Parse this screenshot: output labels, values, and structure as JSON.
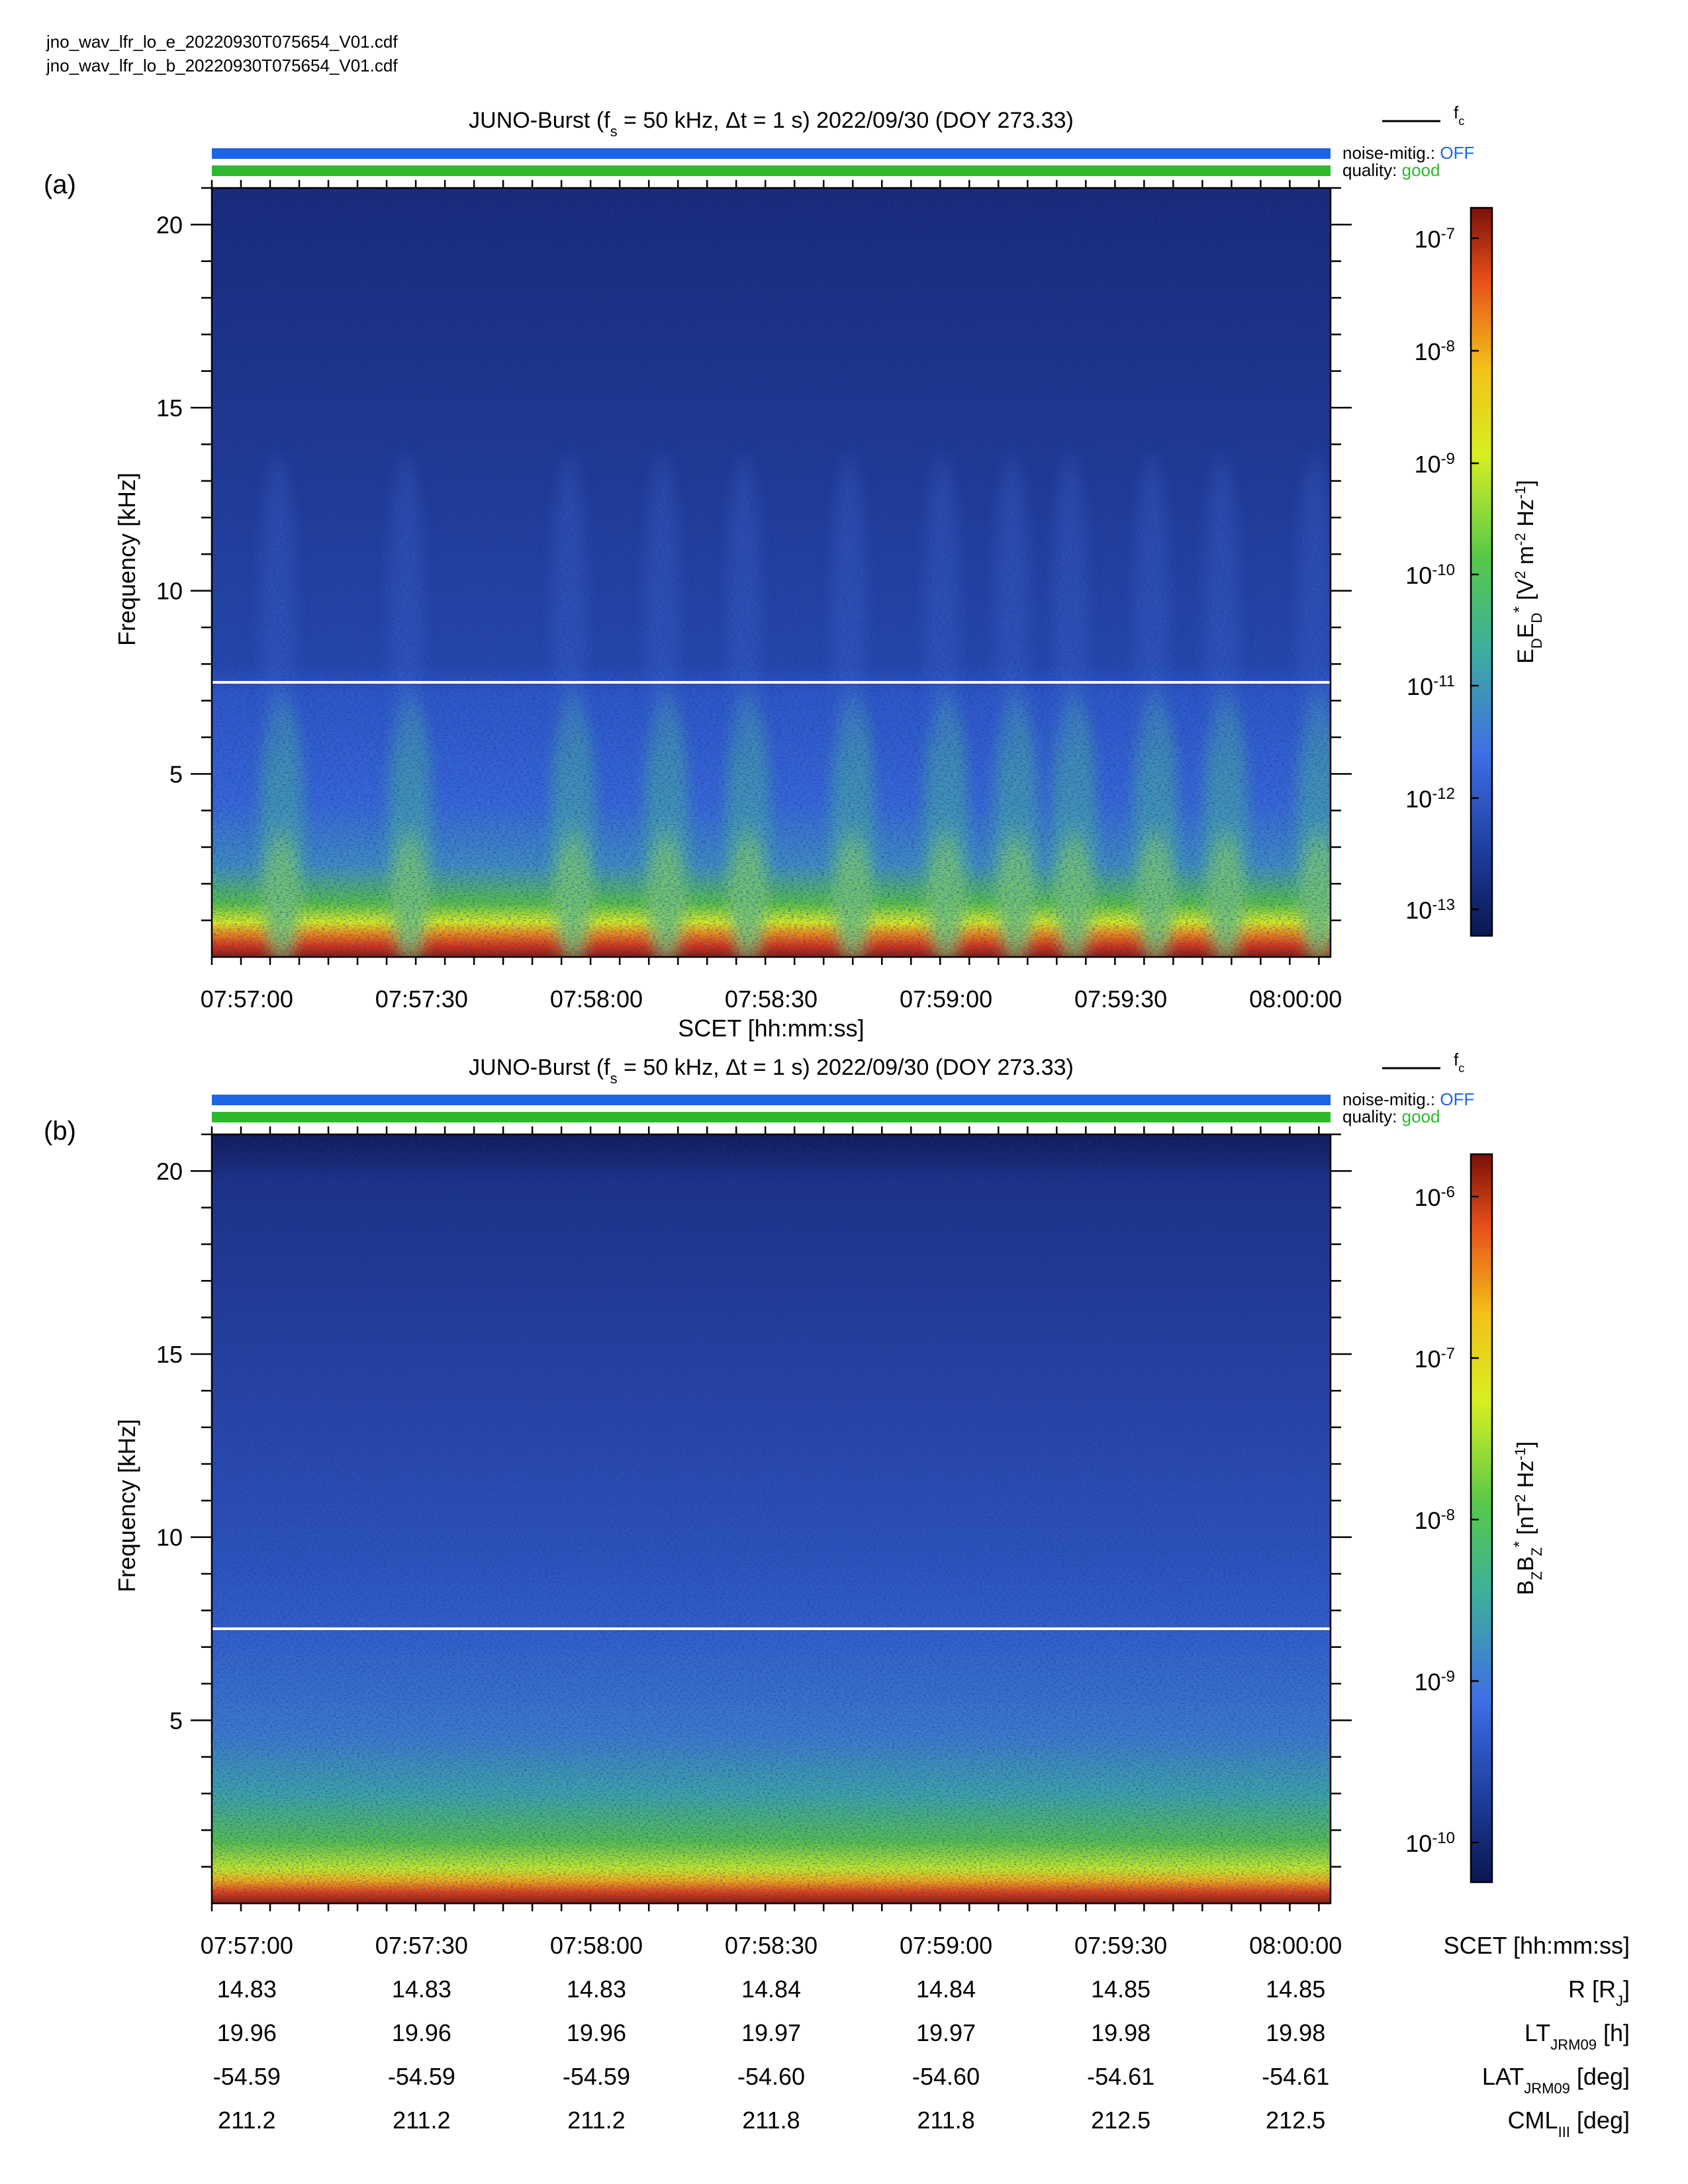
{
  "files": [
    "jno_wav_lfr_lo_e_20220930T075654_V01.cdf",
    "jno_wav_lfr_lo_b_20220930T075654_V01.cdf"
  ],
  "legend": {
    "line_label": "f",
    "line_sub": "c"
  },
  "status": {
    "noise_label": "noise-mitig.:",
    "noise_value": "OFF",
    "quality_label": "quality:",
    "quality_value": "good",
    "noise_color": "#1e64e6",
    "quality_color": "#2db82d"
  },
  "time_ticks": [
    "07:57:00",
    "07:57:30",
    "07:58:00",
    "07:58:30",
    "07:59:00",
    "07:59:30",
    "08:00:00"
  ],
  "xlabel": "SCET [hh:mm:ss]",
  "ylabel": "Frequency [kHz]",
  "panels": [
    {
      "label": "(a)",
      "title": "JUNO-Burst (f_s = 50 kHz, Δt = 1 s)  2022/09/30 (DOY 273.33)",
      "cbar_label": "E_D E_D* [V² m⁻² Hz⁻¹]",
      "cbar_ticks": [
        {
          "base": "10",
          "exp": "-7"
        },
        {
          "base": "10",
          "exp": "-8"
        },
        {
          "base": "10",
          "exp": "-9"
        },
        {
          "base": "10",
          "exp": "-10"
        },
        {
          "base": "10",
          "exp": "-11"
        },
        {
          "base": "10",
          "exp": "-12"
        },
        {
          "base": "10",
          "exp": "-13"
        }
      ]
    },
    {
      "label": "(b)",
      "title": "JUNO-Burst (f_s = 50 kHz, Δt = 1 s)  2022/09/30 (DOY 273.33)",
      "cbar_label": "B_Z B_Z* [nT² Hz⁻¹]",
      "cbar_ticks": [
        {
          "base": "10",
          "exp": "-6"
        },
        {
          "base": "10",
          "exp": "-7"
        },
        {
          "base": "10",
          "exp": "-8"
        },
        {
          "base": "10",
          "exp": "-9"
        },
        {
          "base": "10",
          "exp": "-10"
        }
      ]
    }
  ],
  "ephemeris": {
    "labels": [
      {
        "main": "SCET [hh:mm:ss]",
        "sub": "",
        "rest": ""
      },
      {
        "main": "R [R",
        "sub": "J",
        "rest": "]"
      },
      {
        "main": "LT",
        "sub": "JRM09",
        "rest": " [h]"
      },
      {
        "main": "LAT",
        "sub": "JRM09",
        "rest": " [deg]"
      },
      {
        "main": "CML",
        "sub": "III",
        "rest": " [deg]"
      }
    ],
    "rows": [
      [
        "07:57:00",
        "07:57:30",
        "07:58:00",
        "07:58:30",
        "07:59:00",
        "07:59:30",
        "08:00:00"
      ],
      [
        "14.83",
        "14.83",
        "14.83",
        "14.84",
        "14.84",
        "14.85",
        "14.85"
      ],
      [
        "19.96",
        "19.96",
        "19.96",
        "19.97",
        "19.97",
        "19.98",
        "19.98"
      ],
      [
        "-54.59",
        "-54.59",
        "-54.59",
        "-54.60",
        "-54.60",
        "-54.61",
        "-54.61"
      ],
      [
        "211.2",
        "211.2",
        "211.2",
        "211.8",
        "211.8",
        "212.5",
        "212.5"
      ]
    ]
  },
  "chart_data": [
    {
      "type": "heatmap",
      "title": "JUNO-Burst (f_s = 50 kHz, Δt = 1 s)  2022/09/30 (DOY 273.33)",
      "xlabel": "SCET [hh:mm:ss]",
      "ylabel": "Frequency [kHz]",
      "x_range": [
        "07:56:54",
        "08:00:06"
      ],
      "ylim": [
        0,
        21
      ],
      "y_ticks": [
        5,
        10,
        15,
        20
      ],
      "colorbar": {
        "label": "E_D E_D* [V² m⁻² Hz⁻¹]",
        "scale": "log",
        "range": [
          5e-14,
          2e-07
        ]
      },
      "fc_line_kHz": 7.5,
      "bursts_at": [
        "07:57:06",
        "07:57:28",
        "07:57:56",
        "07:58:12",
        "07:58:26",
        "07:58:44",
        "07:59:00",
        "07:59:12",
        "07:59:22",
        "07:59:36",
        "07:59:48",
        "08:00:04"
      ],
      "colormap": [
        "#0a1650",
        "#1e3fa0",
        "#3f6ee6",
        "#3db19a",
        "#57c84a",
        "#d7ef22",
        "#f3c118",
        "#e8501a",
        "#7a1008"
      ]
    },
    {
      "type": "heatmap",
      "title": "JUNO-Burst (f_s = 50 kHz, Δt = 1 s)  2022/09/30 (DOY 273.33)",
      "xlabel": "SCET [hh:mm:ss]",
      "ylabel": "Frequency [kHz]",
      "x_range": [
        "07:56:54",
        "08:00:06"
      ],
      "ylim": [
        0,
        21
      ],
      "y_ticks": [
        5,
        10,
        15,
        20
      ],
      "colorbar": {
        "label": "B_Z B_Z* [nT² Hz⁻¹]",
        "scale": "log",
        "range": [
          5e-11,
          2e-06
        ]
      },
      "fc_line_kHz": 7.5,
      "colormap": [
        "#0a1650",
        "#1e3fa0",
        "#3f6ee6",
        "#3db19a",
        "#57c84a",
        "#d7ef22",
        "#f3c118",
        "#e8501a",
        "#7a1008"
      ]
    }
  ]
}
